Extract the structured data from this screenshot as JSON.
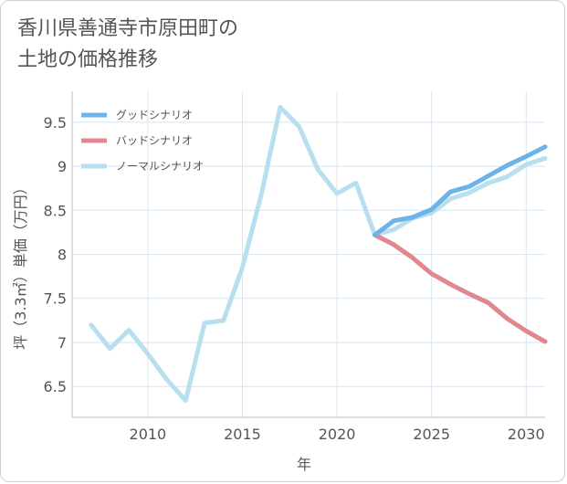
{
  "title_line1": "香川県善通寺市原田町の",
  "title_line2": "土地の価格推移",
  "chart_data": {
    "type": "line",
    "title": "香川県善通寺市原田町の土地の価格推移",
    "xlabel": "年",
    "ylabel": "坪（3.3㎡）単価（万円）",
    "xlim": [
      2006,
      2031
    ],
    "ylim": [
      6.15,
      9.85
    ],
    "xticks": [
      2010,
      2015,
      2020,
      2025,
      2030
    ],
    "xtick_labels": [
      "2010",
      "2015",
      "2020",
      "2025",
      "2030"
    ],
    "yticks": [
      6.5,
      7,
      7.5,
      8,
      8.5,
      9,
      9.5
    ],
    "ytick_labels": [
      "6.5",
      "7",
      "7.5",
      "8",
      "8.5",
      "9",
      "9.5"
    ],
    "grid": true,
    "legend_position": "top-left",
    "series": [
      {
        "name": "グッドシナリオ",
        "color": "#6cb4e8",
        "x": [
          2022,
          2023,
          2024,
          2025,
          2026,
          2027,
          2028,
          2029,
          2030,
          2031
        ],
        "values": [
          8.22,
          8.38,
          8.42,
          8.51,
          8.71,
          8.77,
          8.89,
          9.01,
          9.11,
          9.22
        ]
      },
      {
        "name": "バッドシナリオ",
        "color": "#e0878f",
        "x": [
          2022,
          2023,
          2024,
          2025,
          2026,
          2027,
          2028,
          2029,
          2030,
          2031
        ],
        "values": [
          8.22,
          8.11,
          7.96,
          7.78,
          7.66,
          7.55,
          7.45,
          7.27,
          7.13,
          7.01
        ]
      },
      {
        "name": "ノーマルシナリオ",
        "color": "#b8dff0",
        "x": [
          2007,
          2008,
          2009,
          2010,
          2011,
          2012,
          2013,
          2014,
          2015,
          2016,
          2017,
          2018,
          2019,
          2020,
          2021,
          2022,
          2023,
          2024,
          2025,
          2026,
          2027,
          2028,
          2029,
          2030,
          2031
        ],
        "values": [
          7.2,
          6.93,
          7.14,
          6.87,
          6.58,
          6.34,
          7.22,
          7.25,
          7.85,
          8.68,
          9.67,
          9.45,
          8.96,
          8.69,
          8.81,
          8.22,
          8.28,
          8.41,
          8.47,
          8.63,
          8.7,
          8.81,
          8.88,
          9.02,
          9.09
        ]
      }
    ]
  }
}
